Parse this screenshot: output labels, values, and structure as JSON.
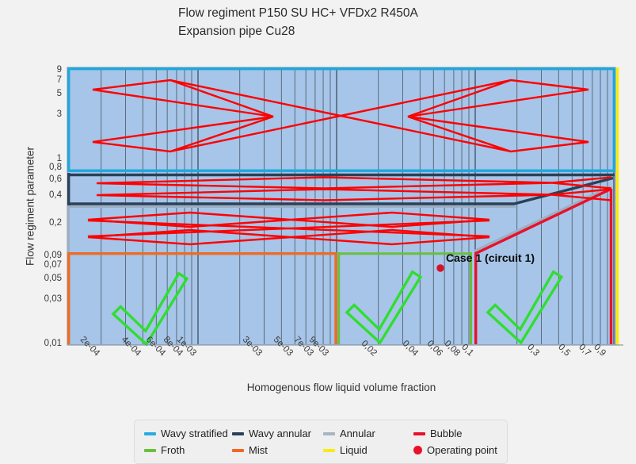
{
  "title": {
    "line1": "Flow regiment P150 SU HC+ VFDx2 R450A",
    "line2": "Expansion pipe Cu28"
  },
  "axis": {
    "x": {
      "label": "Homogenous flow liquid volume fraction",
      "scale": "log",
      "min": 0.000114,
      "max": 1.0,
      "ticks": [
        {
          "v": 0.0002,
          "t": "2e-04"
        },
        {
          "v": 0.0004,
          "t": "4e-04"
        },
        {
          "v": 0.0006,
          "t": "6e-04"
        },
        {
          "v": 0.0008,
          "t": "8e-04"
        },
        {
          "v": 0.001,
          "t": "1e-03"
        },
        {
          "v": 0.003,
          "t": "3e-03"
        },
        {
          "v": 0.005,
          "t": "5e-03"
        },
        {
          "v": 0.007,
          "t": "7e-03"
        },
        {
          "v": 0.009,
          "t": "9e-03"
        },
        {
          "v": 0.02,
          "t": "0,02"
        },
        {
          "v": 0.04,
          "t": "0,04"
        },
        {
          "v": 0.06,
          "t": "0,06"
        },
        {
          "v": 0.08,
          "t": "0,08"
        },
        {
          "v": 0.1,
          "t": "0,1"
        },
        {
          "v": 0.3,
          "t": "0,3"
        },
        {
          "v": 0.5,
          "t": "0,5"
        },
        {
          "v": 0.7,
          "t": "0,7"
        },
        {
          "v": 0.9,
          "t": "0,9"
        }
      ],
      "gridlines": [
        0.0002,
        0.0003,
        0.0004,
        0.0005,
        0.0006,
        0.0007,
        0.0008,
        0.0009,
        0.001,
        0.002,
        0.003,
        0.004,
        0.005,
        0.006,
        0.007,
        0.008,
        0.009,
        0.01,
        0.02,
        0.03,
        0.04,
        0.05,
        0.06,
        0.07,
        0.08,
        0.09,
        0.1,
        0.2,
        0.3,
        0.4,
        0.5,
        0.6,
        0.7,
        0.8,
        0.9,
        1.0
      ]
    },
    "y": {
      "label": "Flow regiment parameter",
      "scale": "log",
      "min": 0.01,
      "max": 10,
      "ticks": [
        {
          "v": 9,
          "t": "9"
        },
        {
          "v": 7,
          "t": "7"
        },
        {
          "v": 5,
          "t": "5"
        },
        {
          "v": 3,
          "t": "3"
        },
        {
          "v": 1,
          "t": "1"
        },
        {
          "v": 0.8,
          "t": "0,8"
        },
        {
          "v": 0.6,
          "t": "0,6"
        },
        {
          "v": 0.4,
          "t": "0,4"
        },
        {
          "v": 0.2,
          "t": "0,2"
        },
        {
          "v": 0.09,
          "t": "0,09"
        },
        {
          "v": 0.07,
          "t": "0,07"
        },
        {
          "v": 0.05,
          "t": "0,05"
        },
        {
          "v": 0.03,
          "t": "0,03"
        },
        {
          "v": 0.01,
          "t": "0,01"
        }
      ]
    }
  },
  "annotation": {
    "label": "Case 1 (circuit 1)"
  },
  "legend": {
    "items": [
      {
        "label": "Wavy stratified",
        "color": "#29ABE2",
        "marker": "dash"
      },
      {
        "label": "Wavy annular",
        "color": "#2B3F5C",
        "marker": "dash"
      },
      {
        "label": "Annular",
        "color": "#A6B6C2",
        "marker": "dash"
      },
      {
        "label": "Bubble",
        "color": "#E8112A",
        "marker": "dash"
      },
      {
        "label": "Froth",
        "color": "#6ABF3C",
        "marker": "dash"
      },
      {
        "label": "Mist",
        "color": "#F26722",
        "marker": "dash"
      },
      {
        "label": "Liquid",
        "color": "#F7EC13",
        "marker": "dash"
      },
      {
        "label": "Operating point",
        "color": "#E8112A",
        "marker": "circle"
      }
    ]
  },
  "chart_data": {
    "type": "area",
    "title": "Flow regiment P150 SU HC+ VFDx2 R450A — Expansion pipe Cu28",
    "xlabel": "Homogenous flow liquid volume fraction",
    "ylabel": "Flow regiment parameter",
    "xscale": "log",
    "yscale": "log",
    "xlim": [
      0.000114,
      1.0
    ],
    "ylim": [
      0.01,
      10
    ],
    "grid": "vertical-log-minor",
    "legend_position": "bottom-center",
    "regions": [
      {
        "name": "Wavy stratified",
        "color": "#29ABE2",
        "x_range": [
          0.000114,
          1.0
        ],
        "y_range": [
          0.8,
          10
        ]
      },
      {
        "name": "Wavy annular",
        "color": "#2B3F5C",
        "x_range": [
          0.000114,
          1.0
        ],
        "y_range": [
          0.33,
          0.8
        ],
        "right_boundary_diagonal": {
          "from": [
            0.19,
            0.33
          ],
          "to": [
            0.96,
            0.62
          ]
        }
      },
      {
        "name": "Annular",
        "color": "#A6B6C2",
        "x_range": [
          0.000114,
          0.1
        ],
        "y_range": [
          0.1,
          0.33
        ],
        "right_boundary_diagonal": {
          "from": [
            0.1,
            0.1
          ],
          "to": [
            0.93,
            0.47
          ]
        }
      },
      {
        "name": "Mist",
        "color": "#F26722",
        "x_range": [
          0.000114,
          0.009
        ],
        "y_range": [
          0.01,
          0.1
        ]
      },
      {
        "name": "Froth",
        "color": "#6ABF3C",
        "x_range": [
          0.009,
          0.09
        ],
        "y_range": [
          0.01,
          0.1
        ]
      },
      {
        "name": "Bubble",
        "color": "#E8112A",
        "boundary": "vertical at x=0.1 from y=0.01 to y=0.1, then diagonal to (0.96, 0.49), vertical at x=0.96"
      },
      {
        "name": "Liquid",
        "color": "#F7EC13",
        "boundary": "vertical line at x=1.05 spanning full y range"
      }
    ],
    "operating_point": {
      "label": "Case 1 (circuit 1)",
      "x": 0.051,
      "y": 0.066
    }
  }
}
